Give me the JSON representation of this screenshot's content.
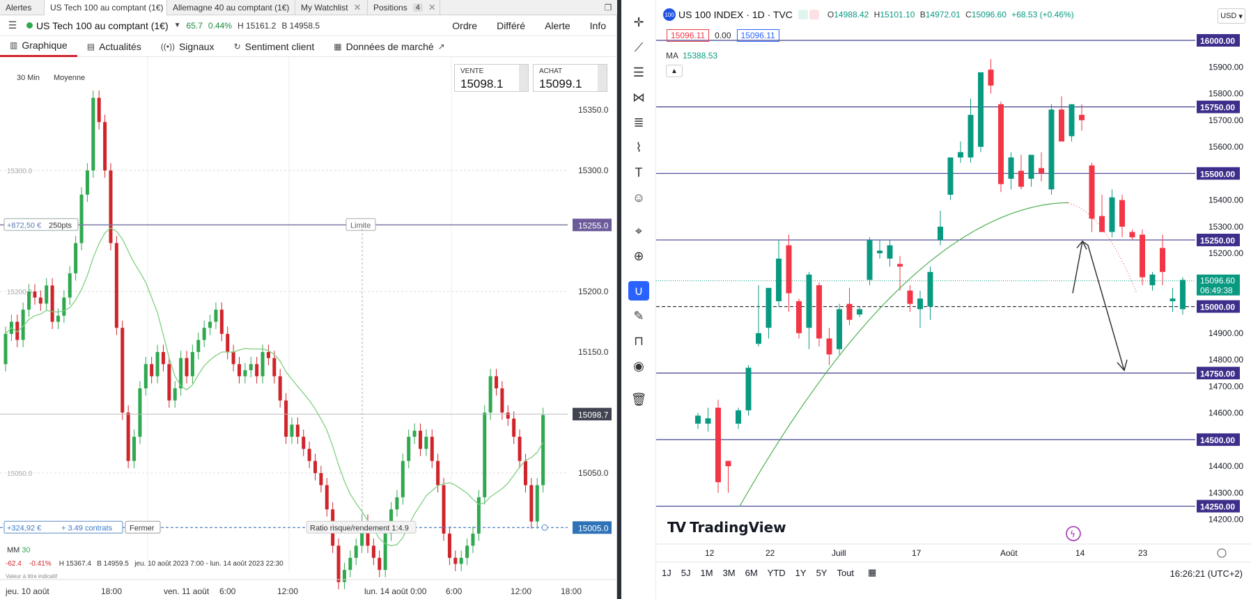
{
  "tabs": [
    {
      "label": "Alertes",
      "close": "✕"
    },
    {
      "label": "US Tech 100 au comptant (1€)",
      "close": "✕"
    },
    {
      "label": "Allemagne 40 au comptant (1€)",
      "close": "✕"
    },
    {
      "label": "My Watchlist",
      "close": "✕"
    },
    {
      "label": "Positions",
      "badge": "4",
      "close": "✕"
    }
  ],
  "instrument": {
    "name": "US Tech 100 au comptant (1€)",
    "change": "65.7",
    "change_pct": "0.44%",
    "high": "H 15161.2",
    "low": "B 14958.5",
    "nav": [
      "Ordre",
      "Différé",
      "Alerte",
      "Info"
    ]
  },
  "subtabs": [
    "Graphique",
    "Actualités",
    "Signaux",
    "Sentiment client",
    "Données de marché"
  ],
  "left_chart": {
    "timeframe": "30 Min",
    "mode": "Moyenne",
    "sell": {
      "label": "VENTE",
      "value": "15098.1"
    },
    "buy": {
      "label": "ACHAT",
      "value": "15099.1"
    },
    "y_ticks": [
      "15350.0",
      "15300.0",
      "15200.0",
      "15150.0",
      "15050.0"
    ],
    "y_ticks_faint": [
      "15300.0",
      "15200.0",
      "15050.0"
    ],
    "limit_label": "+872,50 €",
    "limit_pts": "250pts",
    "limit_tag": "Limite",
    "limit_price": "15255.0",
    "current_price": "15098.7",
    "position_pnl": "+324,92 €",
    "position_size": "+ 3.49 contrats",
    "close_label": "Fermer",
    "ratio": "Ratio risque/rendement 1:4.9",
    "stop_price": "15005.0",
    "x_labels": [
      "jeu. 10 août",
      "18:00",
      "ven. 11 août",
      "6:00",
      "12:00",
      "lun. 14 août 0:00",
      "6:00",
      "12:00",
      "18:00"
    ],
    "mm_label": "MM",
    "mm_value": "30",
    "foot_change": "-62.4",
    "foot_pct": "-0.41%",
    "foot_high": "H 15367.4",
    "foot_low": "B 14959.5",
    "foot_range": "jeu. 10 août 2023 7:00 - lun. 14 août 2023 22:30",
    "foot_note": "Valeur à titre indicatif",
    "colors": {
      "up": "#2fa84f",
      "down": "#d0242b",
      "ma": "#7fcf7f"
    }
  },
  "right_chart": {
    "title": "US 100 INDEX · 1D · TVC",
    "badge": "100",
    "ohlc": {
      "o": "14988.42",
      "h": "15101.10",
      "b": "14972.01",
      "c": "15096.60",
      "chg": "+68.53 (+0.46%)"
    },
    "currency": "USD",
    "sell_chip": "15096.11",
    "spread": "0.00",
    "buy_chip": "15096.11",
    "ma_label": "MA",
    "ma_value": "15388.53",
    "y_ticks": [
      "15900.00",
      "15800.00",
      "15700.00",
      "15600.00",
      "15400.00",
      "15300.00",
      "15200.00",
      "14900.00",
      "14800.00",
      "14700.00",
      "14600.00",
      "14400.00",
      "14300.00",
      "14200.00"
    ],
    "level_labels": [
      "16000.00",
      "15750.00",
      "15500.00",
      "15250.00",
      "15000.00",
      "14750.00",
      "14500.00",
      "14250.00"
    ],
    "current_price": "15096.60",
    "countdown": "06:49:38",
    "x_labels": [
      "12",
      "22",
      "Juill",
      "17",
      "Août",
      "14",
      "23"
    ],
    "logo": "TradingView",
    "ranges": [
      "1J",
      "5J",
      "1M",
      "3M",
      "6M",
      "YTD",
      "1Y",
      "5Y",
      "Tout"
    ],
    "time": "16:26:21 (UTC+2)",
    "colors": {
      "up": "#089981",
      "down": "#f23645",
      "level": "#3d3d8f",
      "ma": "#4caf50",
      "tag": "#3c2e8a"
    }
  }
}
